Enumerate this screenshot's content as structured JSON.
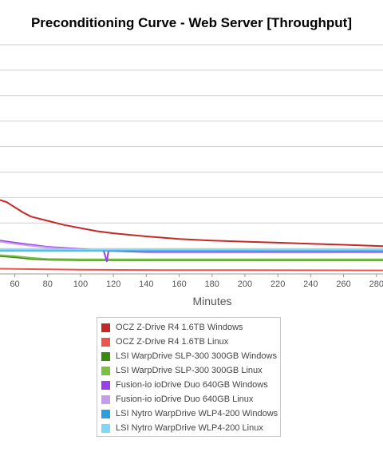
{
  "chart_data": {
    "type": "line",
    "title": "Preconditioning Curve - Web Server [Throughput]",
    "xlabel": "Minutes",
    "ylabel": "",
    "x_ticks": [
      60,
      80,
      100,
      120,
      140,
      160,
      180,
      200,
      220,
      240,
      260,
      280
    ],
    "xlim": [
      51,
      284
    ],
    "ylim": [
      0,
      11
    ],
    "grid": true,
    "legend_position": "bottom",
    "series": [
      {
        "name": "OCZ Z-Drive R4 1.6TB Windows",
        "color": "#c62828",
        "x": [
          51,
          55,
          60,
          65,
          70,
          80,
          90,
          100,
          110,
          120,
          140,
          160,
          180,
          200,
          220,
          240,
          260,
          284
        ],
        "y": [
          3.55,
          3.45,
          3.2,
          2.95,
          2.75,
          2.55,
          2.35,
          2.2,
          2.05,
          1.95,
          1.8,
          1.68,
          1.6,
          1.55,
          1.5,
          1.45,
          1.4,
          1.33
        ]
      },
      {
        "name": "OCZ Z-Drive R4 1.6TB Linux",
        "color": "#ef5350",
        "x": [
          51,
          100,
          150,
          200,
          284
        ],
        "y": [
          0.25,
          0.2,
          0.18,
          0.18,
          0.17
        ]
      },
      {
        "name": "LSI WarpDrive SLP-300 300GB Windows",
        "color": "#3a8a10",
        "x": [
          51,
          60,
          70,
          80,
          100,
          150,
          200,
          284
        ],
        "y": [
          0.85,
          0.8,
          0.72,
          0.68,
          0.66,
          0.66,
          0.66,
          0.66
        ]
      },
      {
        "name": "LSI WarpDrive SLP-300 300GB Linux",
        "color": "#7ac142",
        "x": [
          51,
          60,
          70,
          80,
          100,
          150,
          200,
          284
        ],
        "y": [
          0.9,
          0.85,
          0.77,
          0.72,
          0.7,
          0.7,
          0.7,
          0.7
        ]
      },
      {
        "name": "Fusion-io ioDrive Duo 640GB Windows",
        "color": "#9b3fe6",
        "x": [
          51,
          60,
          70,
          80,
          90,
          100,
          110,
          114,
          116,
          117,
          118,
          120,
          140,
          160,
          200,
          284
        ],
        "y": [
          1.6,
          1.5,
          1.4,
          1.3,
          1.25,
          1.2,
          1.15,
          1.13,
          0.6,
          1.12,
          1.1,
          1.1,
          1.05,
          1.05,
          1.05,
          1.05
        ]
      },
      {
        "name": "Fusion-io ioDrive Duo 640GB Linux",
        "color": "#c79cf0",
        "x": [
          51,
          60,
          70,
          80,
          90,
          100,
          120,
          140,
          200,
          284
        ],
        "y": [
          1.55,
          1.45,
          1.35,
          1.27,
          1.22,
          1.18,
          1.12,
          1.1,
          1.1,
          1.1
        ]
      },
      {
        "name": "LSI Nytro WarpDrive WLP4-200 Windows",
        "color": "#2a9fe0",
        "x": [
          51,
          100,
          150,
          200,
          284
        ],
        "y": [
          1.12,
          1.12,
          1.12,
          1.12,
          1.12
        ]
      },
      {
        "name": "LSI Nytro WarpDrive WLP4-200 Linux",
        "color": "#80d8f8",
        "x": [
          51,
          100,
          150,
          200,
          284
        ],
        "y": [
          1.17,
          1.17,
          1.17,
          1.17,
          1.17
        ]
      }
    ]
  }
}
